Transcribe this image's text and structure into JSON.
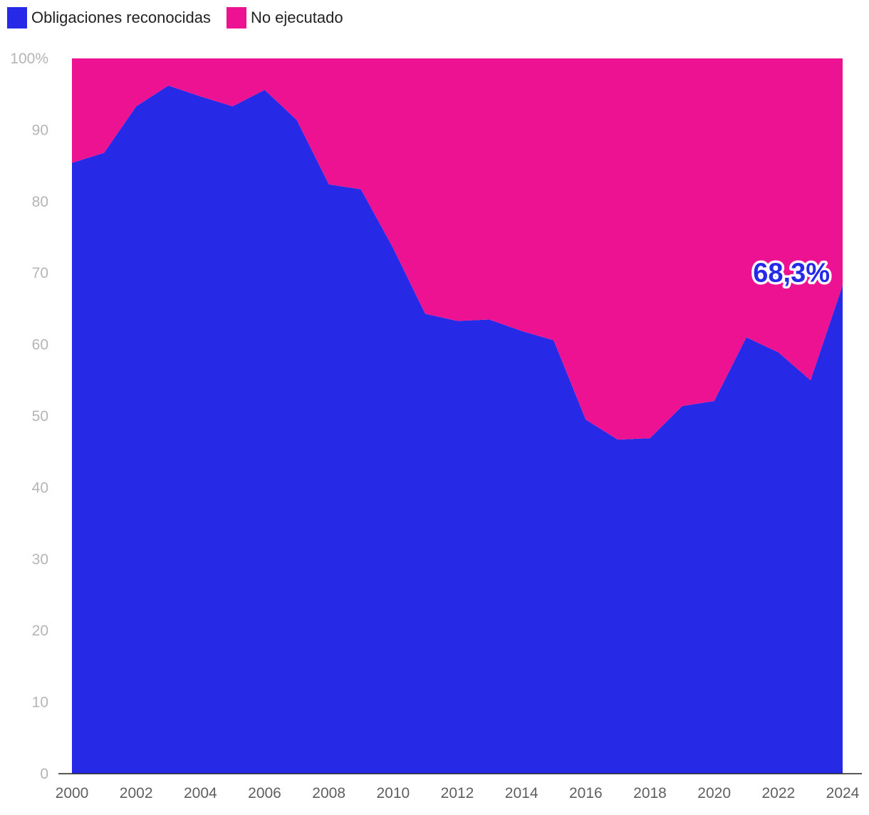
{
  "chart_data": {
    "type": "area",
    "stacked": "percent",
    "title": "",
    "xlabel": "",
    "ylabel": "",
    "ylim": [
      0,
      100
    ],
    "x": [
      2000,
      2001,
      2002,
      2003,
      2004,
      2005,
      2006,
      2007,
      2008,
      2009,
      2010,
      2011,
      2012,
      2013,
      2014,
      2015,
      2016,
      2017,
      2018,
      2019,
      2020,
      2021,
      2022,
      2023,
      2024
    ],
    "series": [
      {
        "name": "Obligaciones reconocidas",
        "color": "#2629e6",
        "values": [
          85.4,
          86.8,
          93.3,
          96.2,
          94.7,
          93.3,
          95.6,
          91.4,
          82.4,
          81.7,
          73.5,
          64.3,
          63.3,
          63.5,
          61.9,
          60.6,
          49.5,
          46.7,
          46.9,
          51.4,
          52.1,
          61.0,
          58.9,
          55.0,
          68.3
        ]
      },
      {
        "name": "No ejecutado",
        "color": "#ed1291",
        "values": [
          14.6,
          13.2,
          6.7,
          3.8,
          5.3,
          6.7,
          4.4,
          8.6,
          17.6,
          18.3,
          26.5,
          35.7,
          36.7,
          36.5,
          38.1,
          39.4,
          50.5,
          53.3,
          53.1,
          48.6,
          47.9,
          39.0,
          41.1,
          45.0,
          31.7
        ]
      }
    ],
    "yticks": [
      "0",
      "10",
      "20",
      "30",
      "40",
      "50",
      "60",
      "70",
      "80",
      "90",
      "100%"
    ],
    "xticks": [
      "2000",
      "2002",
      "2004",
      "2006",
      "2008",
      "2010",
      "2012",
      "2014",
      "2016",
      "2018",
      "2020",
      "2022",
      "2024"
    ],
    "annotation": {
      "text": "68,3%",
      "x": 2024,
      "y": 68.3
    },
    "legend_position": "top-left"
  }
}
